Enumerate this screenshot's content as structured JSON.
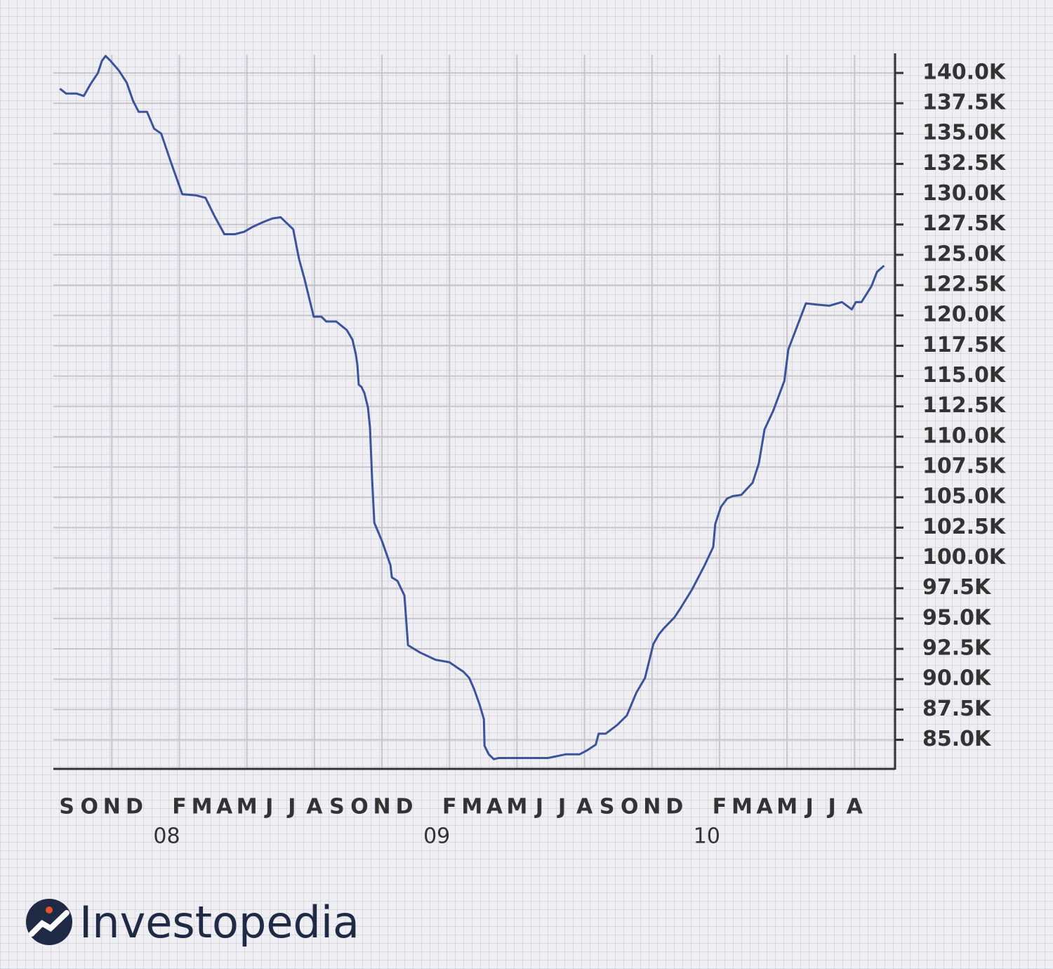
{
  "chart_data": {
    "type": "line",
    "line_color": "#3c5399",
    "grid": true,
    "xlim": [
      -0.6,
      36.8
    ],
    "ylim": [
      82600,
      141500
    ],
    "xgrid": [
      2,
      5,
      8,
      11,
      14,
      17,
      20,
      23,
      26,
      29,
      32,
      35
    ],
    "xticks": [
      {
        "value": 0,
        "label": "S"
      },
      {
        "value": 1,
        "label": "O"
      },
      {
        "value": 2,
        "label": "N"
      },
      {
        "value": 3,
        "label": "D"
      },
      {
        "value": 5,
        "label": "F"
      },
      {
        "value": 6,
        "label": "M"
      },
      {
        "value": 7,
        "label": "A"
      },
      {
        "value": 8,
        "label": "M"
      },
      {
        "value": 9,
        "label": "J"
      },
      {
        "value": 10,
        "label": "J"
      },
      {
        "value": 11,
        "label": "A"
      },
      {
        "value": 12,
        "label": "S"
      },
      {
        "value": 13,
        "label": "O"
      },
      {
        "value": 14,
        "label": "N"
      },
      {
        "value": 15,
        "label": "D"
      },
      {
        "value": 17,
        "label": "F"
      },
      {
        "value": 18,
        "label": "M"
      },
      {
        "value": 19,
        "label": "A"
      },
      {
        "value": 20,
        "label": "M"
      },
      {
        "value": 21,
        "label": "J"
      },
      {
        "value": 22,
        "label": "J"
      },
      {
        "value": 23,
        "label": "A"
      },
      {
        "value": 24,
        "label": "S"
      },
      {
        "value": 25,
        "label": "O"
      },
      {
        "value": 26,
        "label": "N"
      },
      {
        "value": 27,
        "label": "D"
      },
      {
        "value": 29,
        "label": "F"
      },
      {
        "value": 30,
        "label": "M"
      },
      {
        "value": 31,
        "label": "A"
      },
      {
        "value": 32,
        "label": "M"
      },
      {
        "value": 33,
        "label": "J"
      },
      {
        "value": 34,
        "label": "J"
      },
      {
        "value": 35,
        "label": "A"
      }
    ],
    "year_ticks": [
      {
        "value": 4,
        "label": "08"
      },
      {
        "value": 16,
        "label": "09"
      },
      {
        "value": 28,
        "label": "10"
      }
    ],
    "yticks": [
      {
        "value": 85000,
        "label": "85.0K"
      },
      {
        "value": 87500,
        "label": "87.5K"
      },
      {
        "value": 90000,
        "label": "90.0K"
      },
      {
        "value": 92500,
        "label": "92.5K"
      },
      {
        "value": 95000,
        "label": "95.0K"
      },
      {
        "value": 97500,
        "label": "97.5K"
      },
      {
        "value": 100000,
        "label": "100.0K"
      },
      {
        "value": 102500,
        "label": "102.5K"
      },
      {
        "value": 105000,
        "label": "105.0K"
      },
      {
        "value": 107500,
        "label": "107.5K"
      },
      {
        "value": 110000,
        "label": "110.0K"
      },
      {
        "value": 112500,
        "label": "112.5K"
      },
      {
        "value": 115000,
        "label": "115.0K"
      },
      {
        "value": 117500,
        "label": "117.5K"
      },
      {
        "value": 120000,
        "label": "120.0K"
      },
      {
        "value": 122500,
        "label": "122.5K"
      },
      {
        "value": 125000,
        "label": "125.0K"
      },
      {
        "value": 127500,
        "label": "127.5K"
      },
      {
        "value": 130000,
        "label": "130.0K"
      },
      {
        "value": 132500,
        "label": "132.5K"
      },
      {
        "value": 135000,
        "label": "135.0K"
      },
      {
        "value": 137500,
        "label": "137.5K"
      },
      {
        "value": 140000,
        "label": "140.0K"
      }
    ],
    "x": [
      -0.31,
      -0.03,
      0.44,
      0.75,
      1.06,
      1.38,
      1.56,
      1.72,
      1.94,
      2.31,
      2.66,
      2.94,
      3.19,
      3.56,
      3.88,
      4.19,
      4.63,
      5.13,
      5.75,
      6.16,
      6.56,
      7.0,
      7.47,
      7.88,
      8.25,
      8.72,
      9.13,
      9.5,
      10.06,
      10.31,
      10.56,
      10.97,
      11.31,
      11.53,
      11.97,
      12.44,
      12.69,
      12.84,
      12.91,
      12.97,
      13.09,
      13.22,
      13.38,
      13.47,
      13.56,
      13.66,
      14.0,
      14.38,
      14.44,
      14.69,
      15.0,
      15.16,
      15.69,
      16.38,
      17.0,
      17.31,
      17.63,
      17.88,
      18.09,
      18.34,
      18.53,
      18.56,
      18.75,
      18.97,
      19.19,
      19.44,
      21.38,
      22.16,
      22.78,
      23.09,
      23.5,
      23.63,
      23.94,
      24.44,
      24.88,
      25.31,
      25.69,
      26.06,
      26.31,
      26.53,
      27.0,
      27.25,
      27.78,
      28.34,
      28.72,
      28.81,
      29.06,
      29.34,
      29.59,
      29.97,
      30.47,
      30.75,
      31.0,
      31.38,
      31.88,
      32.06,
      32.47,
      32.84,
      33.31,
      33.88,
      34.44,
      34.88,
      35.06,
      35.31,
      35.75,
      36.0,
      36.31
    ],
    "values": [
      138700,
      138300,
      138300,
      138100,
      139100,
      140000,
      141000,
      141400,
      141000,
      140200,
      139200,
      137700,
      136800,
      136800,
      135400,
      135000,
      132600,
      130000,
      129900,
      129700,
      128200,
      126700,
      126700,
      126900,
      127300,
      127700,
      128000,
      128100,
      127100,
      124700,
      123000,
      119900,
      119900,
      119500,
      119500,
      118800,
      118000,
      116800,
      115900,
      114300,
      114100,
      113600,
      112400,
      110700,
      106600,
      102900,
      101400,
      99400,
      98400,
      98100,
      96900,
      92800,
      92200,
      91600,
      91400,
      91000,
      90600,
      90100,
      89200,
      87900,
      86700,
      84500,
      83800,
      83400,
      83500,
      83500,
      83500,
      83800,
      83800,
      84100,
      84600,
      85500,
      85500,
      86200,
      87000,
      88900,
      90100,
      92900,
      93700,
      94200,
      95100,
      95800,
      97400,
      99400,
      100900,
      102800,
      104200,
      104900,
      105100,
      105200,
      106200,
      107800,
      110600,
      112100,
      114600,
      117200,
      119200,
      121000,
      120900,
      120800,
      121100,
      120500,
      121100,
      121100,
      122400,
      123600,
      124100
    ]
  },
  "brand": "Investopedia"
}
